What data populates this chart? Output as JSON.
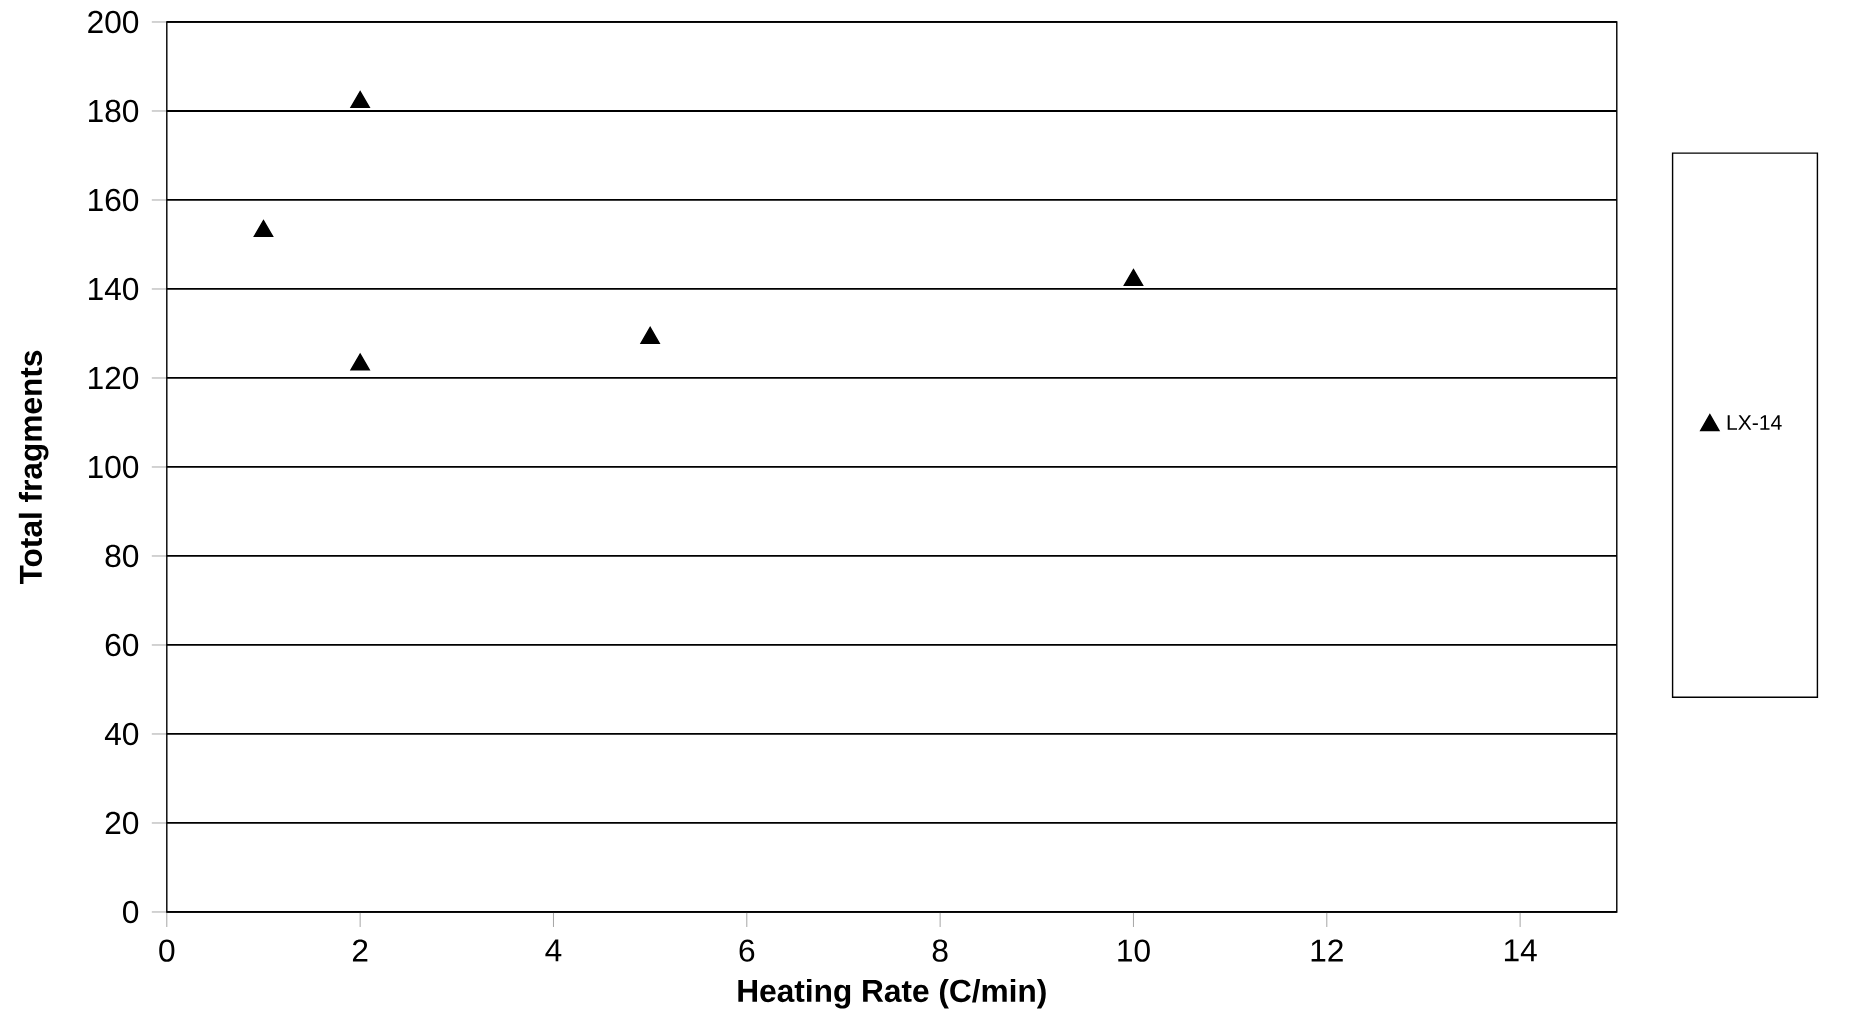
{
  "chart_data": {
    "type": "scatter",
    "xlabel": "Heating Rate (C/min)",
    "ylabel": "Total fragments",
    "series": [
      {
        "name": "LX-14",
        "color": "#000000",
        "x": [
          1,
          2,
          2,
          5,
          10
        ],
        "values": [
          153,
          182,
          123,
          129,
          142
        ]
      }
    ],
    "xlim": [
      0,
      15
    ],
    "xticks": [
      0,
      2,
      4,
      6,
      8,
      10,
      12,
      14
    ],
    "ylim": [
      0,
      200
    ],
    "yticks": [
      0,
      20,
      40,
      60,
      80,
      100,
      120,
      140,
      160,
      180,
      200
    ],
    "grid": "y",
    "legend": "right",
    "marker": "triangle"
  }
}
